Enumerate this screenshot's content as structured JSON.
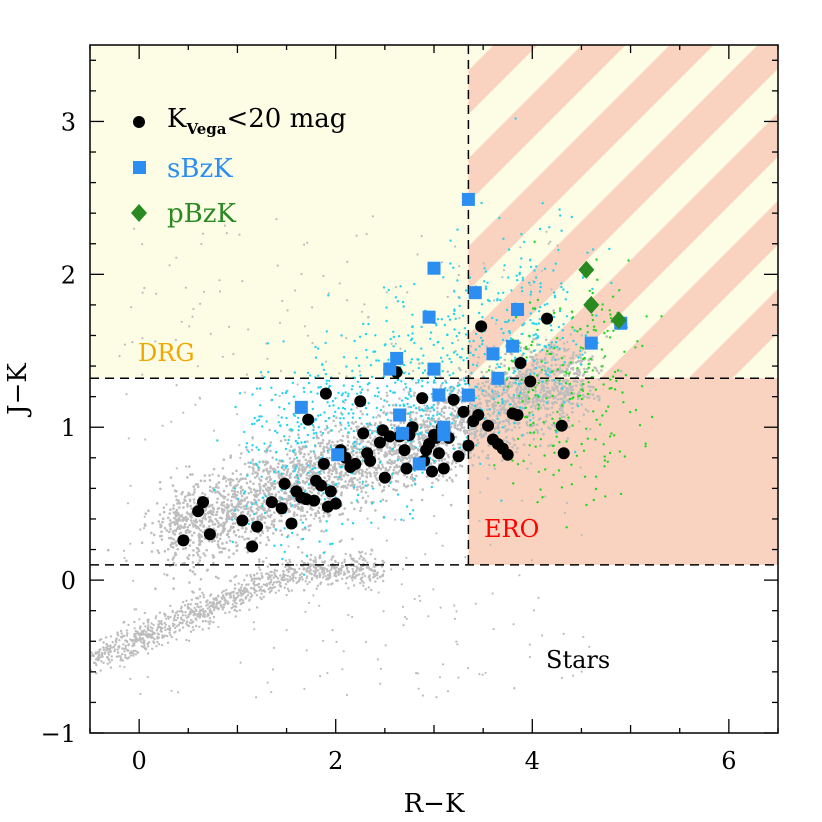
{
  "chart_data": {
    "type": "scatter",
    "xlabel": "R−K",
    "ylabel": "J−K",
    "xlim": [
      -0.5,
      6.5
    ],
    "ylim": [
      -1.0,
      3.5
    ],
    "xticks": [
      0,
      2,
      4,
      6
    ],
    "yticks": [
      -1,
      0,
      1,
      2,
      3
    ],
    "xtick_labels": [
      "0",
      "2",
      "4",
      "6"
    ],
    "ytick_labels": [
      "−1",
      "0",
      "1",
      "2",
      "3"
    ],
    "grid": false,
    "legend_position": "top-left",
    "cuts": {
      "drg_jk": 1.32,
      "ero_rk": 3.35,
      "star_jk": 0.1
    },
    "regions": {
      "drg": {
        "label": "DRG",
        "color": "#f0a800",
        "fill": "#fdfde6"
      },
      "ero": {
        "label": "ERO",
        "color": "#ff0000",
        "fill": "#f9d3bf"
      },
      "stars": {
        "label": "Stars",
        "color": "#000000"
      }
    },
    "series": [
      {
        "name": "K",
        "name_sub": "Vega",
        "name_suffix": "<20 mag",
        "marker": "circle",
        "color": "#000000",
        "points": [
          [
            0.45,
            0.26
          ],
          [
            0.6,
            0.45
          ],
          [
            0.65,
            0.51
          ],
          [
            0.72,
            0.3
          ],
          [
            1.05,
            0.39
          ],
          [
            1.15,
            0.22
          ],
          [
            1.2,
            0.35
          ],
          [
            1.35,
            0.51
          ],
          [
            1.45,
            0.47
          ],
          [
            1.48,
            0.63
          ],
          [
            1.55,
            0.37
          ],
          [
            1.6,
            0.58
          ],
          [
            1.65,
            0.54
          ],
          [
            1.7,
            0.53
          ],
          [
            1.72,
            1.05
          ],
          [
            1.78,
            0.52
          ],
          [
            1.8,
            0.65
          ],
          [
            1.85,
            0.62
          ],
          [
            1.88,
            0.76
          ],
          [
            1.9,
            1.22
          ],
          [
            1.92,
            0.48
          ],
          [
            1.95,
            0.58
          ],
          [
            2.0,
            0.5
          ],
          [
            2.05,
            0.85
          ],
          [
            2.1,
            0.8
          ],
          [
            2.15,
            0.74
          ],
          [
            2.2,
            0.76
          ],
          [
            2.25,
            1.17
          ],
          [
            2.28,
            0.96
          ],
          [
            2.32,
            0.83
          ],
          [
            2.35,
            0.78
          ],
          [
            2.45,
            0.9
          ],
          [
            2.48,
            0.98
          ],
          [
            2.5,
            0.67
          ],
          [
            2.55,
            0.94
          ],
          [
            2.62,
            1.36
          ],
          [
            2.65,
            0.94
          ],
          [
            2.7,
            0.85
          ],
          [
            2.72,
            0.73
          ],
          [
            2.75,
            0.95
          ],
          [
            2.78,
            1.0
          ],
          [
            2.85,
            0.76
          ],
          [
            2.88,
            1.19
          ],
          [
            2.9,
            0.78
          ],
          [
            2.92,
            0.85
          ],
          [
            2.95,
            0.89
          ],
          [
            2.98,
            0.71
          ],
          [
            3.0,
            0.95
          ],
          [
            3.02,
            0.93
          ],
          [
            3.05,
            0.83
          ],
          [
            3.08,
            1.0
          ],
          [
            3.1,
            0.73
          ],
          [
            3.15,
            0.93
          ],
          [
            3.2,
            1.18
          ],
          [
            3.25,
            0.81
          ],
          [
            3.3,
            1.1
          ],
          [
            3.35,
            0.88
          ],
          [
            3.4,
            1.04
          ],
          [
            3.45,
            1.08
          ],
          [
            3.48,
            1.66
          ],
          [
            3.55,
            1.01
          ],
          [
            3.6,
            0.92
          ],
          [
            3.65,
            0.89
          ],
          [
            3.7,
            0.86
          ],
          [
            3.75,
            0.82
          ],
          [
            3.8,
            1.09
          ],
          [
            3.85,
            1.08
          ],
          [
            3.88,
            1.42
          ],
          [
            3.98,
            1.3
          ],
          [
            4.15,
            1.71
          ],
          [
            4.3,
            1.01
          ],
          [
            4.32,
            0.83
          ]
        ]
      },
      {
        "name": "sBzK",
        "marker": "square",
        "color": "#2b8ef0",
        "points": [
          [
            1.65,
            1.13
          ],
          [
            2.02,
            0.82
          ],
          [
            2.55,
            1.38
          ],
          [
            2.62,
            1.45
          ],
          [
            2.65,
            1.08
          ],
          [
            2.68,
            0.96
          ],
          [
            2.85,
            0.76
          ],
          [
            2.95,
            1.72
          ],
          [
            3.0,
            2.04
          ],
          [
            3.0,
            1.38
          ],
          [
            3.05,
            1.21
          ],
          [
            3.1,
            1.0
          ],
          [
            3.1,
            0.95
          ],
          [
            3.35,
            1.21
          ],
          [
            3.35,
            2.49
          ],
          [
            3.42,
            1.88
          ],
          [
            3.6,
            1.48
          ],
          [
            3.65,
            1.32
          ],
          [
            3.8,
            1.53
          ],
          [
            3.85,
            1.77
          ],
          [
            4.6,
            1.55
          ],
          [
            4.9,
            1.68
          ]
        ]
      },
      {
        "name": "pBzK",
        "marker": "diamond",
        "color": "#2a8a22",
        "points": [
          [
            4.55,
            2.03
          ],
          [
            4.6,
            1.8
          ],
          [
            4.88,
            1.7
          ]
        ]
      }
    ],
    "background_populations": [
      {
        "name": "",
        "color": "#bdbdbd",
        "description": "field galaxies"
      },
      {
        "name": "",
        "color": "#22d4ee",
        "description": "faint sBzK"
      },
      {
        "name": "",
        "color": "#1ed81e",
        "description": "faint pBzK"
      }
    ],
    "annotations": [
      "DRG",
      "ERO",
      "Stars"
    ]
  }
}
